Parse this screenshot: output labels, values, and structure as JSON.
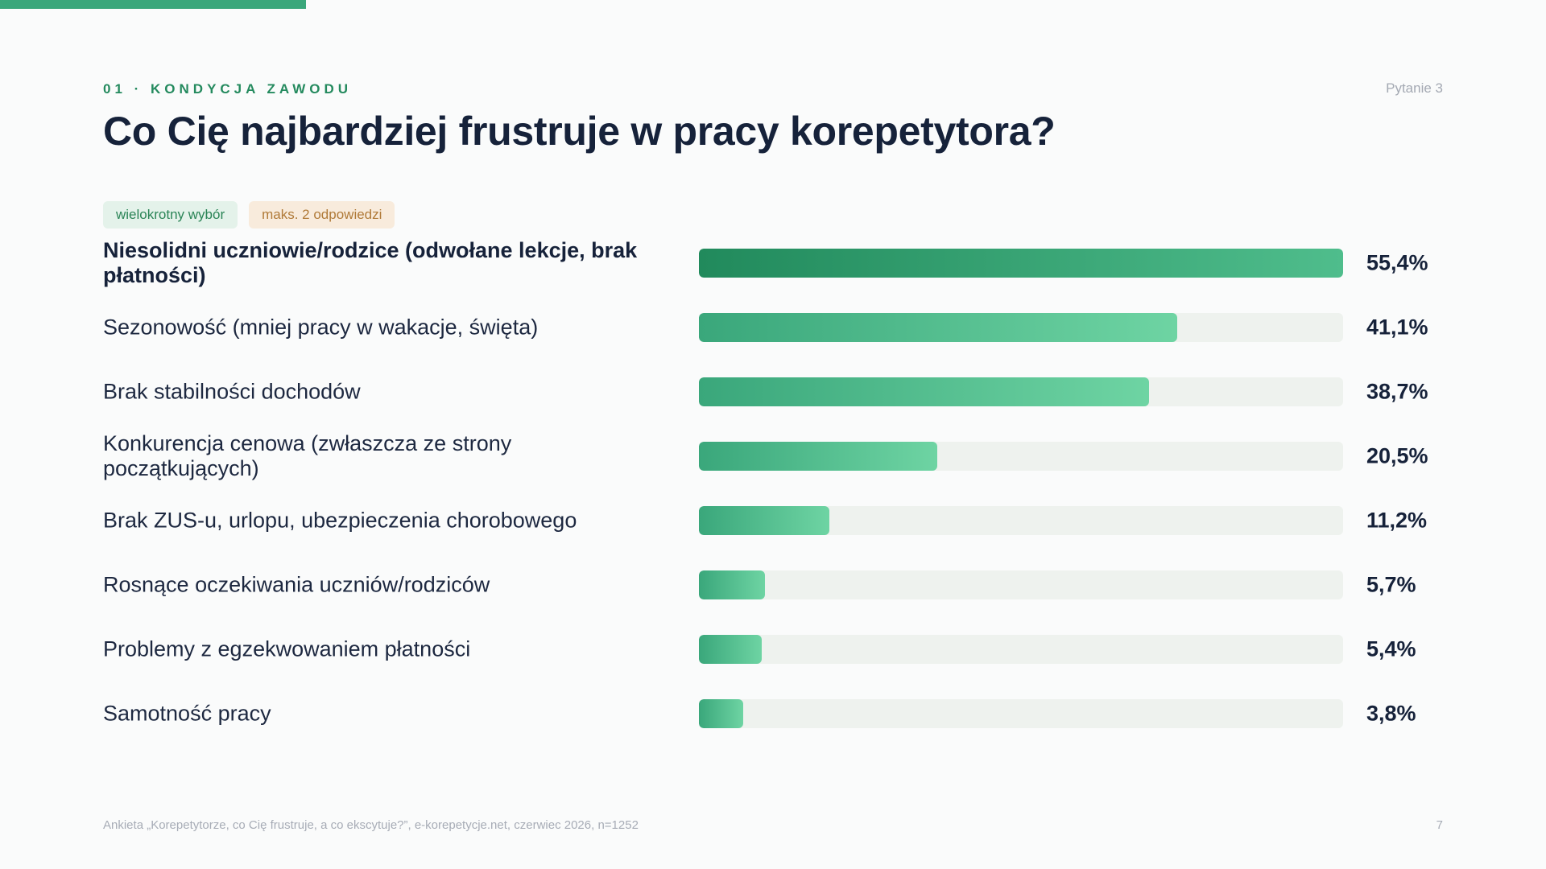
{
  "header": {
    "section": "01 · KONDYCJA ZAWODU",
    "question_number": "Pytanie 3",
    "title": "Co Cię najbardziej frustruje w pracy korepetytora?"
  },
  "tags": {
    "multi": "wielokrotny wybór",
    "max": "maks. 2 odpowiedzi"
  },
  "chart_data": {
    "type": "bar",
    "orientation": "horizontal",
    "categories": [
      "Niesolidni uczniowie/rodzice (odwołane lekcje, brak płatności)",
      "Sezonowość (mniej pracy w wakacje, święta)",
      "Brak stabilności dochodów",
      "Konkurencja cenowa (zwłaszcza ze strony początkujących)",
      "Brak ZUS-u, urlopu, ubezpieczenia chorobowego",
      "Rosnące oczekiwania uczniów/rodziców",
      "Problemy z egzekwowaniem płatności",
      "Samotność pracy"
    ],
    "values": [
      55.4,
      41.1,
      38.7,
      20.5,
      11.2,
      5.7,
      5.4,
      3.8
    ],
    "value_labels": [
      "55,4%",
      "41,1%",
      "38,7%",
      "20,5%",
      "11,2%",
      "5,7%",
      "5,4%",
      "3,8%"
    ],
    "xlim": [
      0,
      55.4
    ],
    "colors": {
      "top_bar": "#218a5c",
      "bar": "#3aa77b",
      "bar_light": "#6ed4a3",
      "track": "#eef2ee"
    }
  },
  "footer": {
    "source": "Ankieta „Korepetytorze, co Cię frustruje, a co ekscytuje?”, e-korepetycje.net, czerwiec 2026, n=1252",
    "page": "7"
  }
}
